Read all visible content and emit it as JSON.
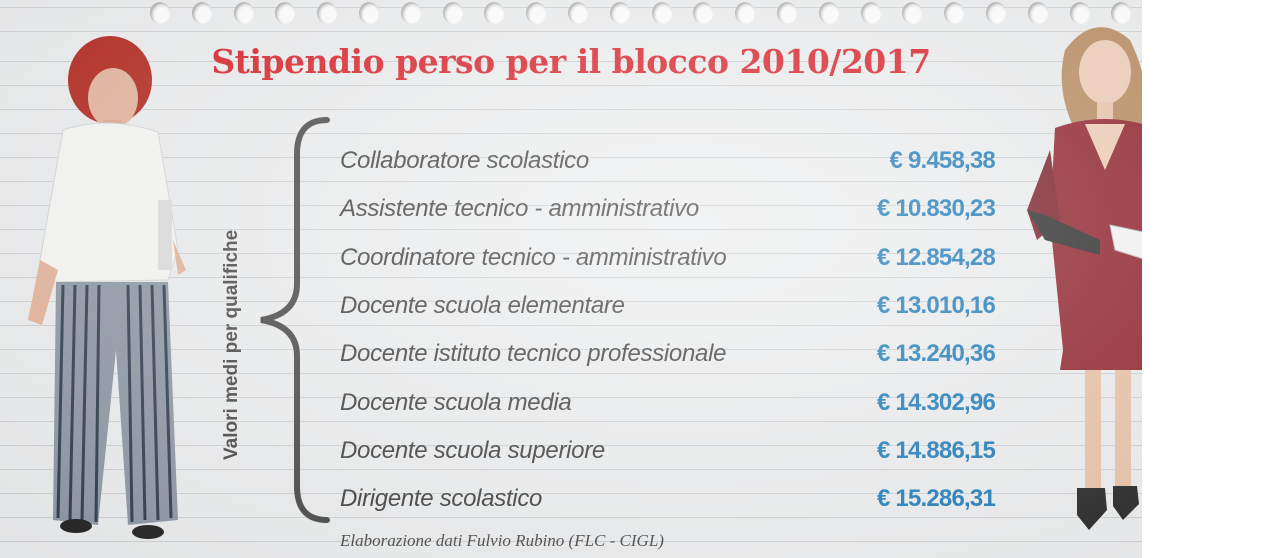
{
  "title": "Stipendio perso per il blocco 2010/2017",
  "side_label": "Valori medi per qualifiche",
  "rows": [
    {
      "role": "Collaboratore scolastico",
      "amount": "€ 9.458,38"
    },
    {
      "role": "Assistente tecnico - amministrativo",
      "amount": "€ 10.830,23"
    },
    {
      "role": "Coordinatore tecnico - amministrativo",
      "amount": "€ 12.854,28"
    },
    {
      "role": "Docente scuola elementare",
      "amount": "€ 13.010,16"
    },
    {
      "role": "Docente istituto tecnico professionale",
      "amount": "€ 13.240,36"
    },
    {
      "role": "Docente scuola media",
      "amount": "€ 14.302,96"
    },
    {
      "role": "Docente scuola superiore",
      "amount": "€ 14.886,15"
    },
    {
      "role": "Dirigente scolastico",
      "amount": "€ 15.286,31"
    }
  ],
  "source": "Elaborazione dati Fulvio Rubino (FLC - CIGL)",
  "colors": {
    "title": "#d81e25",
    "amount": "#1a79b8",
    "text": "#3a3a3a",
    "paper": "#ecedee"
  }
}
